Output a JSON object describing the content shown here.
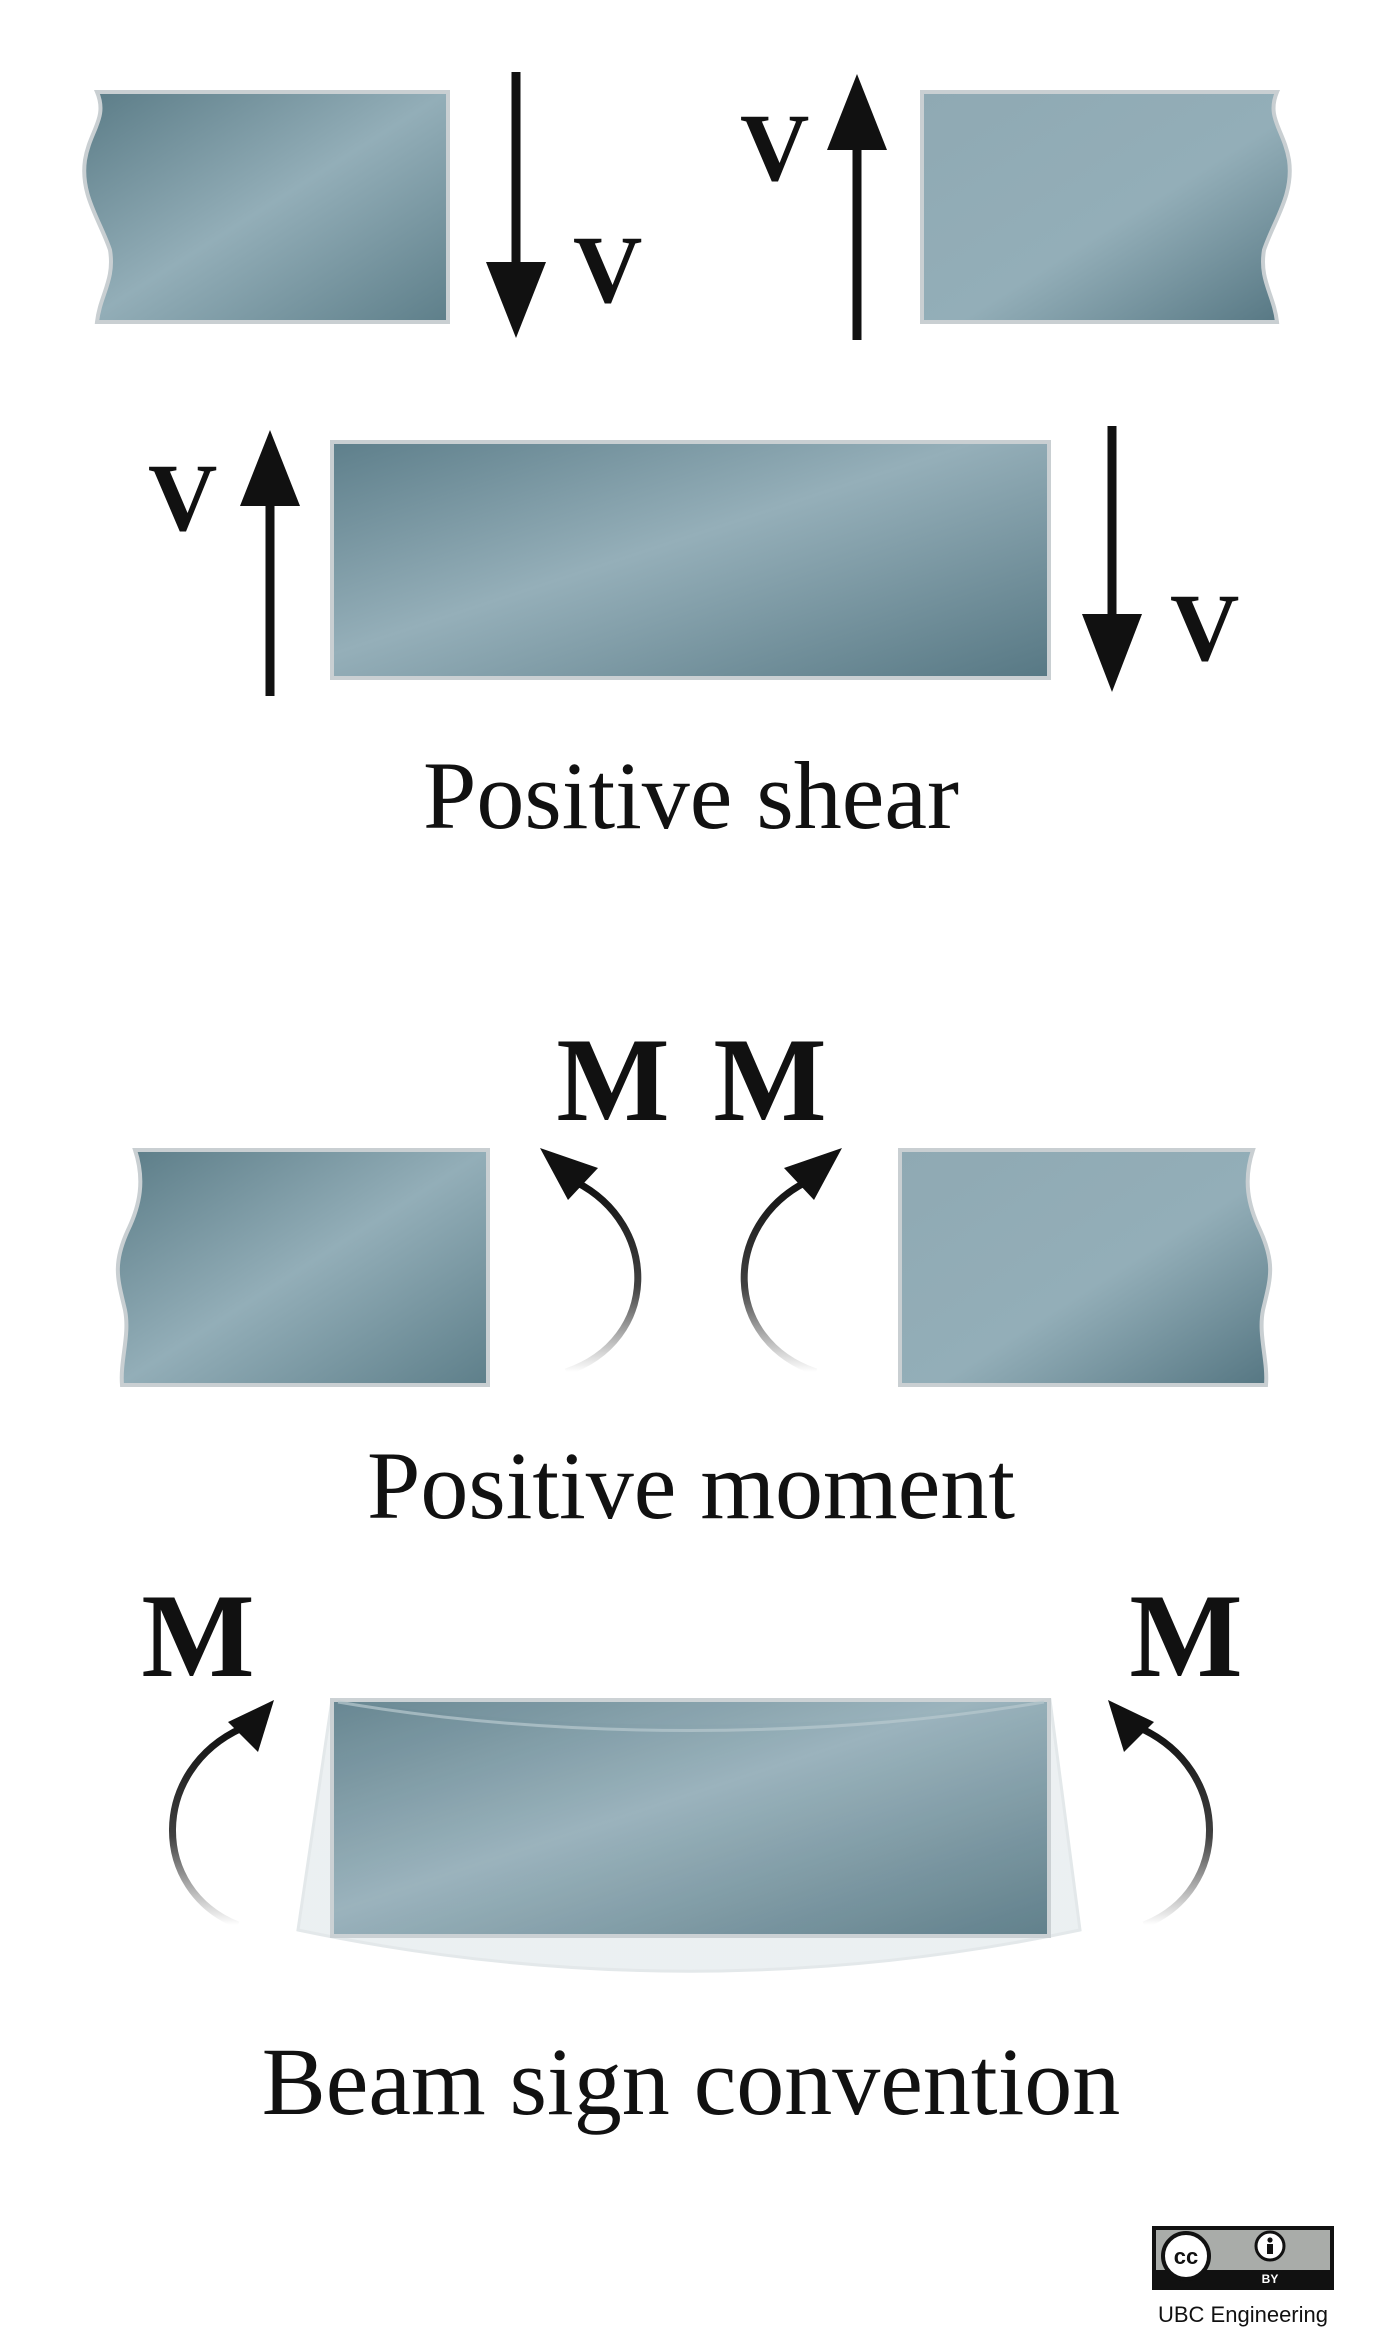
{
  "sections": {
    "shear": {
      "caption": "Positive shear",
      "labels": [
        "V",
        "V",
        "V",
        "V"
      ]
    },
    "moment": {
      "caption": "Positive moment",
      "labels": [
        "M",
        "M"
      ]
    },
    "convention": {
      "caption": "Beam sign convention",
      "labels": [
        "M",
        "M"
      ]
    }
  },
  "license": {
    "cc": "cc",
    "by": "BY",
    "credit": "UBC Engineering"
  },
  "colors": {
    "beam_dark": "#5b7c87",
    "beam_light": "#93aeb8",
    "beam_edge": "#c9cfd2",
    "arrow": "#111111",
    "text": "#111111"
  }
}
